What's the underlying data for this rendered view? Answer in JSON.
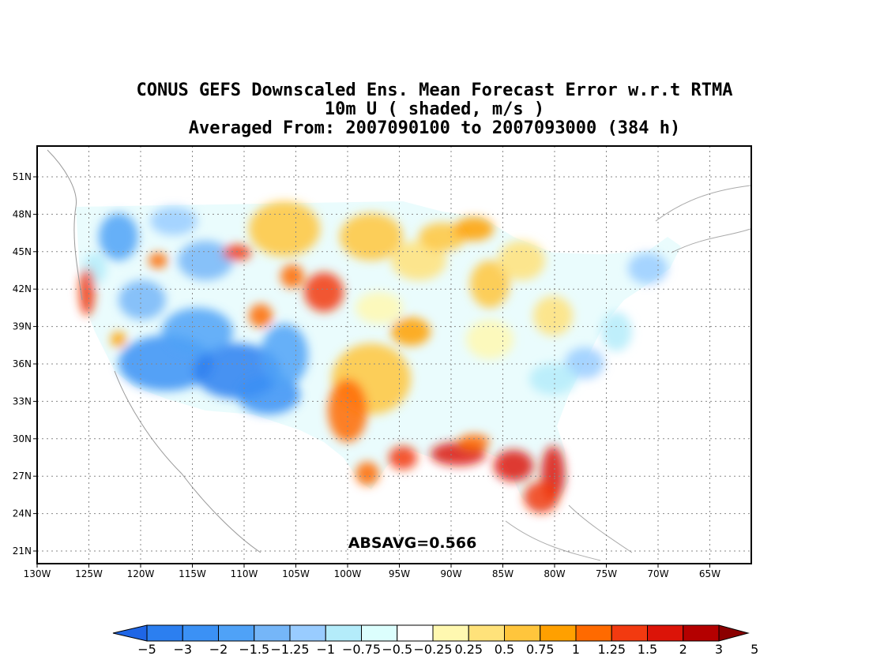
{
  "title": {
    "line1": "CONUS GEFS Downscaled Ens. Mean Forecast Error w.r.t RTMA",
    "line2": "10m U ( shaded, m/s )",
    "line3": "Averaged From: 2007090100 to 2007093000 (384 h)"
  },
  "annotation": "ABSAVG=0.566",
  "axes": {
    "x_labels": [
      "130W",
      "125W",
      "120W",
      "115W",
      "110W",
      "105W",
      "100W",
      "95W",
      "90W",
      "85W",
      "80W",
      "75W",
      "70W",
      "65W"
    ],
    "y_labels": [
      "51N",
      "48N",
      "45N",
      "42N",
      "39N",
      "36N",
      "33N",
      "30N",
      "27N",
      "24N",
      "21N"
    ]
  },
  "colorbar": {
    "colors": [
      "#1f66e6",
      "#2c7ff0",
      "#3b91f5",
      "#4fa2f7",
      "#75b6f8",
      "#99ccff",
      "#b4ecfa",
      "#dcfefd",
      "#ffffff",
      "#fff8b0",
      "#ffe27a",
      "#ffc53c",
      "#ffa000",
      "#ff6a00",
      "#f23a10",
      "#dc1408",
      "#b40000",
      "#8b0000"
    ],
    "labels": [
      "−5",
      "−3",
      "−2",
      "−1.5",
      "−1.25",
      "−1",
      "−0.75",
      "−0.5",
      "−0.25",
      "0.25",
      "0.5",
      "0.75",
      "1",
      "1.25",
      "1.5",
      "2",
      "3",
      "5"
    ]
  },
  "regions": [
    {
      "name": "west-blue",
      "color": "#3b91f5"
    },
    {
      "name": "plains-orange",
      "color": "#ffc53c"
    },
    {
      "name": "gulf-red",
      "color": "#f23a10"
    },
    {
      "name": "east-light",
      "color": "#b4ecfa"
    }
  ]
}
